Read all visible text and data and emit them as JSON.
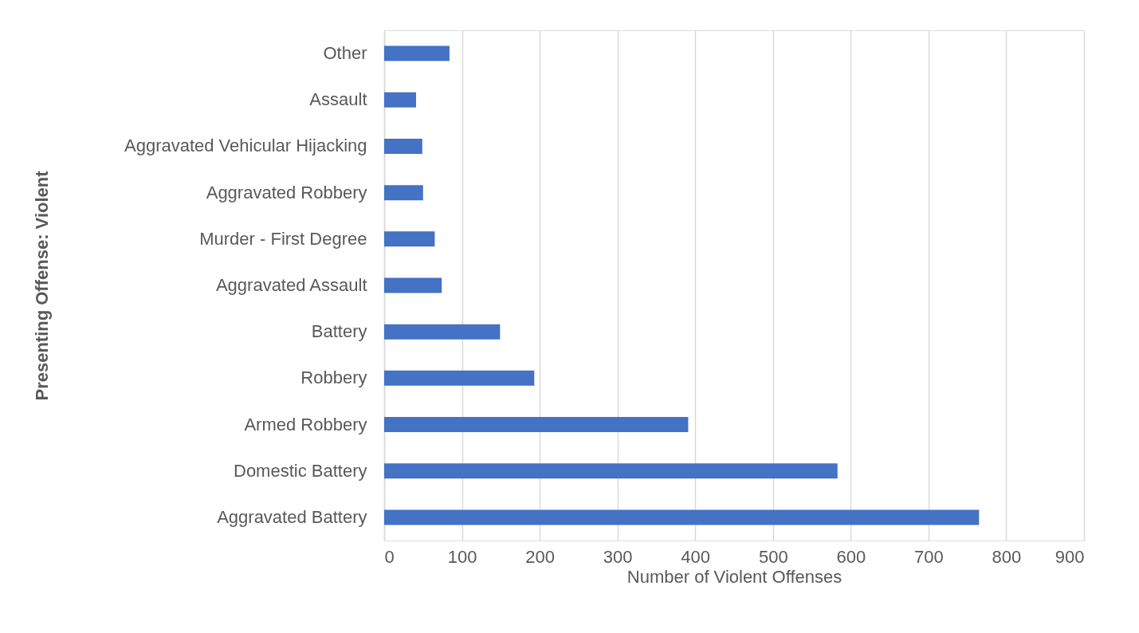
{
  "chart_data": {
    "type": "bar",
    "orientation": "horizontal",
    "xlabel": "Number of Violent Offenses",
    "ylabel": "Presenting Offense: Violent",
    "categories": [
      "Other",
      "Assault",
      "Aggravated Vehicular Hijacking",
      "Aggravated Robbery",
      "Murder - First Degree",
      "Aggravated Assault",
      "Battery",
      "Robbery",
      "Armed Robbery",
      "Domestic Battery",
      "Aggravated Battery"
    ],
    "values": [
      84,
      41,
      49,
      50,
      65,
      74,
      149,
      193,
      391,
      583,
      765
    ],
    "color": "#4472c4",
    "xlim": [
      0,
      900
    ],
    "xticks": [
      0,
      100,
      200,
      300,
      400,
      500,
      600,
      700,
      800,
      900
    ],
    "grid": "x",
    "legend": false
  }
}
